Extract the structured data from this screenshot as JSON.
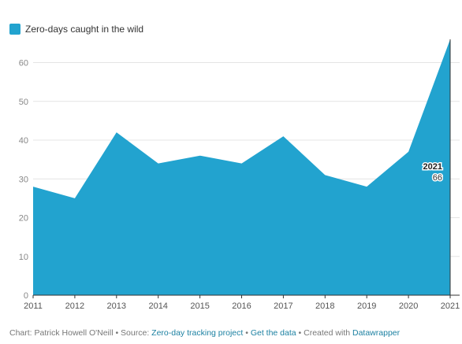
{
  "chart_data": {
    "type": "area",
    "title": "",
    "xlabel": "",
    "ylabel": "",
    "x": [
      2011,
      2012,
      2013,
      2014,
      2015,
      2016,
      2017,
      2018,
      2019,
      2020,
      2021
    ],
    "series": [
      {
        "name": "Zero-days caught in the wild",
        "values": [
          28,
          25,
          42,
          34,
          36,
          34,
          41,
          31,
          28,
          37,
          66
        ]
      }
    ],
    "ylim": [
      0,
      66
    ],
    "yticks": [
      0,
      10,
      20,
      30,
      40,
      50,
      60
    ],
    "xticks": [
      2011,
      2012,
      2013,
      2014,
      2015,
      2016,
      2017,
      2018,
      2019,
      2020,
      2021
    ],
    "grid": "horizontal",
    "legend_position": "top-left",
    "color": "#22a3cf",
    "highlight": {
      "x": "2021",
      "value": "66"
    }
  },
  "footer": {
    "credit": "Chart: Patrick Howell O'Neill",
    "sep1": " • Source: ",
    "source_link": "Zero-day tracking project",
    "sep2": " • ",
    "data_link": "Get the data",
    "sep3": " • Created with ",
    "tool_link": "Datawrapper"
  }
}
